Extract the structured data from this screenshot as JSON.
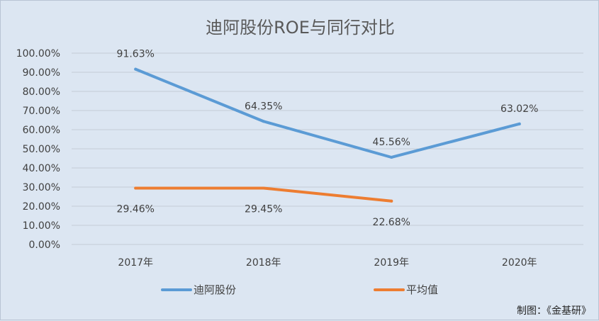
{
  "chart_data": {
    "type": "line",
    "title": "迪阿股份ROE与同行对比",
    "categories": [
      "2017年",
      "2018年",
      "2019年",
      "2020年"
    ],
    "series": [
      {
        "name": "迪阿股份",
        "color": "#5b9bd5",
        "values": [
          91.63,
          64.35,
          45.56,
          63.02
        ],
        "labels": [
          "91.63%",
          "64.35%",
          "45.56%",
          "63.02%"
        ]
      },
      {
        "name": "平均值",
        "color": "#ed7d31",
        "values": [
          29.46,
          29.45,
          22.68,
          null
        ],
        "labels": [
          "29.46%",
          "29.45%",
          "22.68%",
          null
        ]
      }
    ],
    "ylim": [
      0,
      100
    ],
    "yticks": [
      "0.00%",
      "10.00%",
      "20.00%",
      "30.00%",
      "40.00%",
      "50.00%",
      "60.00%",
      "70.00%",
      "80.00%",
      "90.00%",
      "100.00%"
    ],
    "xlabel": "",
    "ylabel": "",
    "grid": true,
    "legend_position": "bottom"
  },
  "credit": "制图：《金基研》"
}
